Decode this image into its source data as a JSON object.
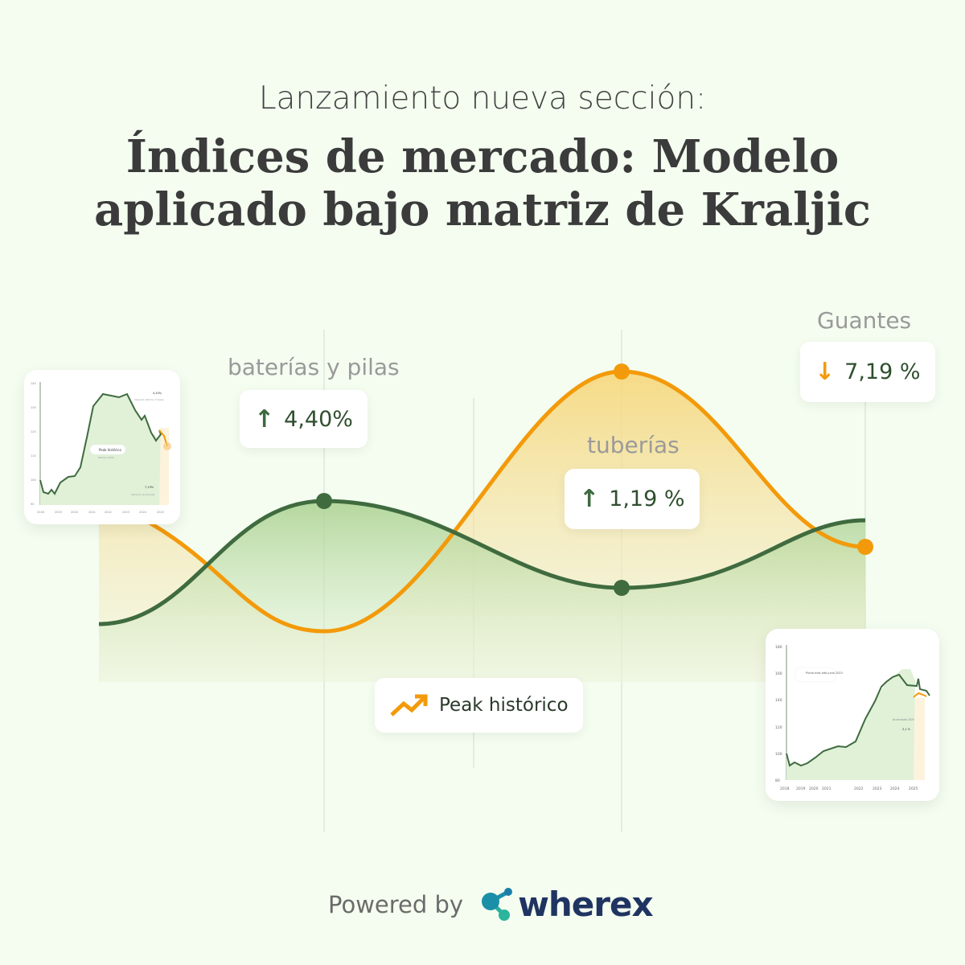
{
  "header": {
    "subtitle": "Lanzamiento nueva sección:",
    "title_line1": "Índices de mercado: Modelo",
    "title_line2": "aplicado bajo matriz de Kraljic"
  },
  "categories": [
    {
      "label": "baterías y pilas",
      "value": "4,40%",
      "direction": "up"
    },
    {
      "label": "tuberías",
      "value": "1,19 %",
      "direction": "up"
    },
    {
      "label": "Guantes",
      "value": "7,19 %",
      "direction": "down"
    }
  ],
  "peak_badge": {
    "label": "Peak histórico",
    "icon": "trending-up-icon"
  },
  "mini_chart_left": {
    "y_ticks": [
      "140",
      "130",
      "120",
      "110",
      "100",
      "90"
    ],
    "x_ticks": [
      "2018",
      "2019",
      "2020",
      "2021",
      "2022",
      "2023",
      "2024",
      "2025"
    ],
    "peak_label": "Peak histórico",
    "peak_date": "Febrero 2022",
    "recent_change": "4,40%",
    "recent_caption": "Variación últimos 3 meses",
    "accumulated_change": "7,19%",
    "accumulated_caption": "Variación acumulada"
  },
  "mini_chart_right": {
    "y_ticks": [
      "180",
      "160",
      "140",
      "120",
      "100",
      "80"
    ],
    "x_ticks": [
      "2018",
      "2019",
      "2020",
      "2021",
      "2022",
      "2023",
      "2024",
      "2025"
    ],
    "peak_label": "Punto más alto junio 2023",
    "accumulated_caption": "Acumulado 2025",
    "accumulated_change": "3,1 %"
  },
  "footer": {
    "powered_by": "Powered by",
    "brand": "wherex"
  },
  "colors": {
    "green": "#3f6b3f",
    "orange": "#f39a0a",
    "background": "#f4fdf0"
  }
}
